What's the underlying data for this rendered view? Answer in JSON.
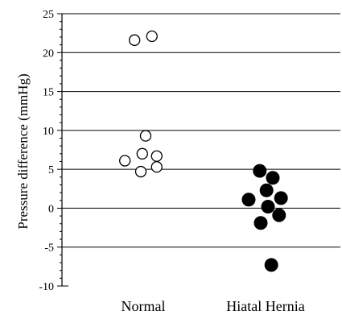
{
  "chart_data": {
    "type": "scatter",
    "title": "",
    "xlabel": "",
    "ylabel": "Pressure difference (mmHg)",
    "ylim": [
      -10,
      25
    ],
    "y_ticks": [
      "25",
      "20",
      "15",
      "10",
      "5",
      "0",
      "-5",
      "-10"
    ],
    "grid": true,
    "categories": [
      "Normal",
      "Hiatal Hernia"
    ],
    "series": [
      {
        "category": "Normal",
        "marker": "open-circle",
        "points": [
          {
            "offset": -0.18,
            "y": 21.6
          },
          {
            "offset": 0.18,
            "y": 22.1
          },
          {
            "offset": 0.05,
            "y": 9.3
          },
          {
            "offset": -0.02,
            "y": 7.0
          },
          {
            "offset": 0.28,
            "y": 6.7
          },
          {
            "offset": -0.38,
            "y": 6.1
          },
          {
            "offset": -0.05,
            "y": 4.7
          },
          {
            "offset": 0.28,
            "y": 5.3
          }
        ]
      },
      {
        "category": "Hiatal Hernia",
        "marker": "filled-circle",
        "points": [
          {
            "offset": -0.12,
            "y": 4.8
          },
          {
            "offset": 0.15,
            "y": 3.9
          },
          {
            "offset": 0.02,
            "y": 2.3
          },
          {
            "offset": -0.35,
            "y": 1.1
          },
          {
            "offset": 0.32,
            "y": 1.3
          },
          {
            "offset": 0.05,
            "y": 0.2
          },
          {
            "offset": 0.28,
            "y": -0.9
          },
          {
            "offset": -0.1,
            "y": -1.9
          },
          {
            "offset": 0.12,
            "y": -7.3
          }
        ]
      }
    ],
    "colors": {
      "axis": "#000000",
      "grid": "#000000",
      "open_fill": "#ffffff",
      "filled": "#000000"
    }
  }
}
